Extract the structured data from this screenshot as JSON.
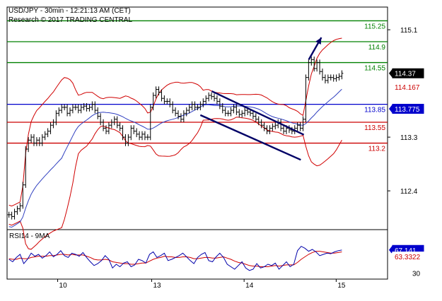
{
  "header": {
    "title": "USD/JPY - 30min - 12:21:13 AM (CET)",
    "subtitle": "Research © 2017 TRADING CENTRAL"
  },
  "chart_data": {
    "type": "line",
    "price_axis": {
      "ticks": [
        "115.1",
        "113.3",
        "112.4"
      ],
      "tick_values": [
        115.1,
        113.3,
        112.4
      ],
      "range": [
        111.75,
        115.48
      ]
    },
    "time_axis": {
      "labels": [
        "10",
        "13",
        "14",
        "15"
      ]
    },
    "levels": [
      {
        "value": 115.25,
        "label": "115.25",
        "color": "#008000"
      },
      {
        "value": 114.9,
        "label": "114.9",
        "color": "#008000"
      },
      {
        "value": 114.55,
        "label": "114.55",
        "color": "#008000"
      },
      {
        "value": 113.85,
        "label": "113.85",
        "color": "#0000cc"
      },
      {
        "value": 113.55,
        "label": "113.55",
        "color": "#cc0000"
      },
      {
        "value": 113.2,
        "label": "113.2",
        "color": "#cc0000"
      }
    ],
    "price_badges": [
      {
        "value": 114.37,
        "label": "114.37",
        "bg": "#000000",
        "color": "#ffffff"
      },
      {
        "value": 114.167,
        "label": "114.167",
        "bg": "#ffffff",
        "color": "#cc0000"
      },
      {
        "value": 113.775,
        "label": "113.775",
        "bg": "#0000cc",
        "color": "#ffffff"
      }
    ],
    "price_series": [
      112.0,
      111.97,
      112.05,
      112.1,
      112.15,
      112.5,
      113.1,
      113.25,
      113.3,
      113.2,
      113.25,
      113.2,
      113.3,
      113.35,
      113.4,
      113.5,
      113.55,
      113.7,
      113.75,
      113.8,
      113.8,
      113.7,
      113.75,
      113.8,
      113.8,
      113.75,
      113.8,
      113.82,
      113.78,
      113.8,
      113.85,
      113.75,
      113.65,
      113.55,
      113.45,
      113.4,
      113.5,
      113.55,
      113.6,
      113.5,
      113.45,
      113.3,
      113.2,
      113.3,
      113.45,
      113.4,
      113.35,
      113.3,
      113.35,
      113.3,
      113.3,
      113.8,
      114.0,
      114.1,
      114.05,
      113.95,
      113.9,
      113.9,
      113.85,
      113.75,
      113.7,
      113.65,
      113.6,
      113.7,
      113.75,
      113.8,
      113.85,
      113.8,
      113.8,
      113.85,
      113.9,
      113.95,
      114.0,
      113.98,
      113.95,
      113.9,
      113.82,
      113.75,
      113.7,
      113.7,
      113.75,
      113.8,
      113.72,
      113.68,
      113.7,
      113.75,
      113.72,
      113.7,
      113.65,
      113.6,
      113.55,
      113.5,
      113.45,
      113.4,
      113.45,
      113.48,
      113.5,
      113.55,
      113.45,
      113.4,
      113.45,
      113.42,
      113.4,
      113.45,
      113.5,
      113.45,
      113.6,
      114.3,
      114.55,
      114.6,
      114.45,
      114.55,
      114.4,
      114.3,
      114.25,
      114.3,
      114.3,
      114.28,
      114.3,
      114.32,
      114.37
    ],
    "trendlines": [
      {
        "from": [
          0.538,
          114.07
        ],
        "to": [
          0.78,
          113.34
        ]
      },
      {
        "from": [
          0.508,
          113.67
        ],
        "to": [
          0.772,
          112.92
        ]
      }
    ],
    "target_arrow": {
      "from": [
        0.793,
        114.6
      ],
      "to": [
        0.826,
        114.97
      ]
    },
    "rsi": {
      "label": "RSI14 - 9MA",
      "ticks": [
        "30"
      ],
      "tick_values": [
        30
      ],
      "range": [
        20,
        100
      ],
      "badges": [
        {
          "value": 67.141,
          "label": "67.141",
          "bg": "#0000cc",
          "color": "#ffffff"
        },
        {
          "value": 63.3322,
          "label": "63.3322",
          "bg": "#ffffff",
          "color": "#cc0000"
        }
      ],
      "rsi_series": [
        52,
        48,
        55,
        60,
        45,
        52,
        62,
        57,
        60,
        54,
        58,
        64,
        56,
        60,
        66,
        58,
        55,
        62,
        60,
        57,
        63,
        55,
        48,
        42,
        45,
        50,
        58,
        52,
        38,
        44,
        40,
        46,
        48,
        40,
        43,
        52,
        50,
        46,
        60,
        64,
        55,
        58,
        62,
        50,
        52,
        55,
        58,
        62,
        56,
        50,
        45,
        55,
        60,
        63,
        50,
        48,
        56,
        62,
        55,
        44,
        40,
        36,
        42,
        48,
        38,
        34,
        36,
        45,
        38,
        40,
        44,
        42,
        46,
        36,
        42,
        48,
        40,
        44,
        66,
        73,
        70,
        65,
        68,
        64,
        58,
        60,
        62,
        61,
        64,
        66,
        67
      ],
      "ma_series": [
        53,
        52,
        52,
        54,
        53,
        53,
        55,
        56,
        57,
        57,
        57,
        58,
        58,
        59,
        60,
        60,
        59,
        60,
        59,
        59,
        59,
        57,
        55,
        52,
        51,
        51,
        52,
        51,
        48,
        47,
        46,
        45,
        45,
        44,
        44,
        45,
        46,
        46,
        49,
        52,
        54,
        55,
        57,
        56,
        56,
        55,
        55,
        56,
        56,
        55,
        53,
        53,
        54,
        55,
        55,
        54,
        54,
        55,
        56,
        54,
        52,
        49,
        47,
        46,
        44,
        42,
        41,
        41,
        40,
        40,
        40,
        41,
        42,
        41,
        42,
        43,
        43,
        43,
        47,
        52,
        56,
        60,
        63,
        65,
        65,
        64,
        63,
        62,
        62,
        63,
        64
      ]
    }
  }
}
